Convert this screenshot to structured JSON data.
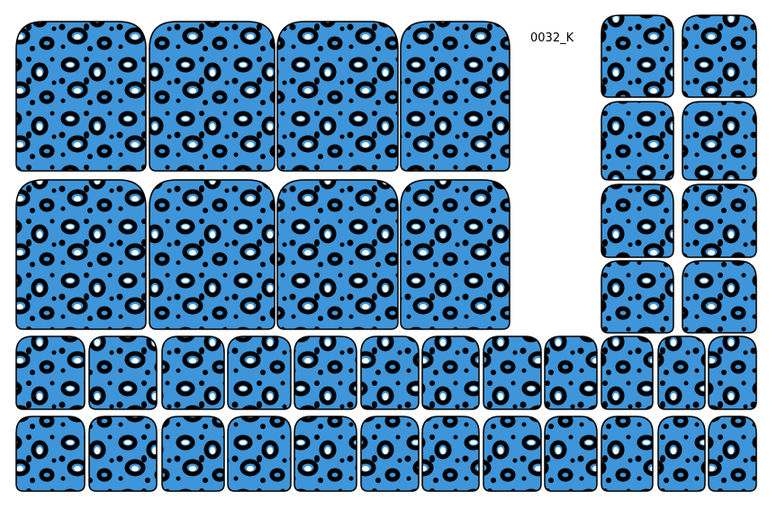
{
  "sheet": {
    "code_label": "0032_K",
    "pattern": "leopard-print",
    "colors": {
      "base": "#3e95d9",
      "spot": "#000000",
      "highlight": "#ffffff"
    }
  }
}
